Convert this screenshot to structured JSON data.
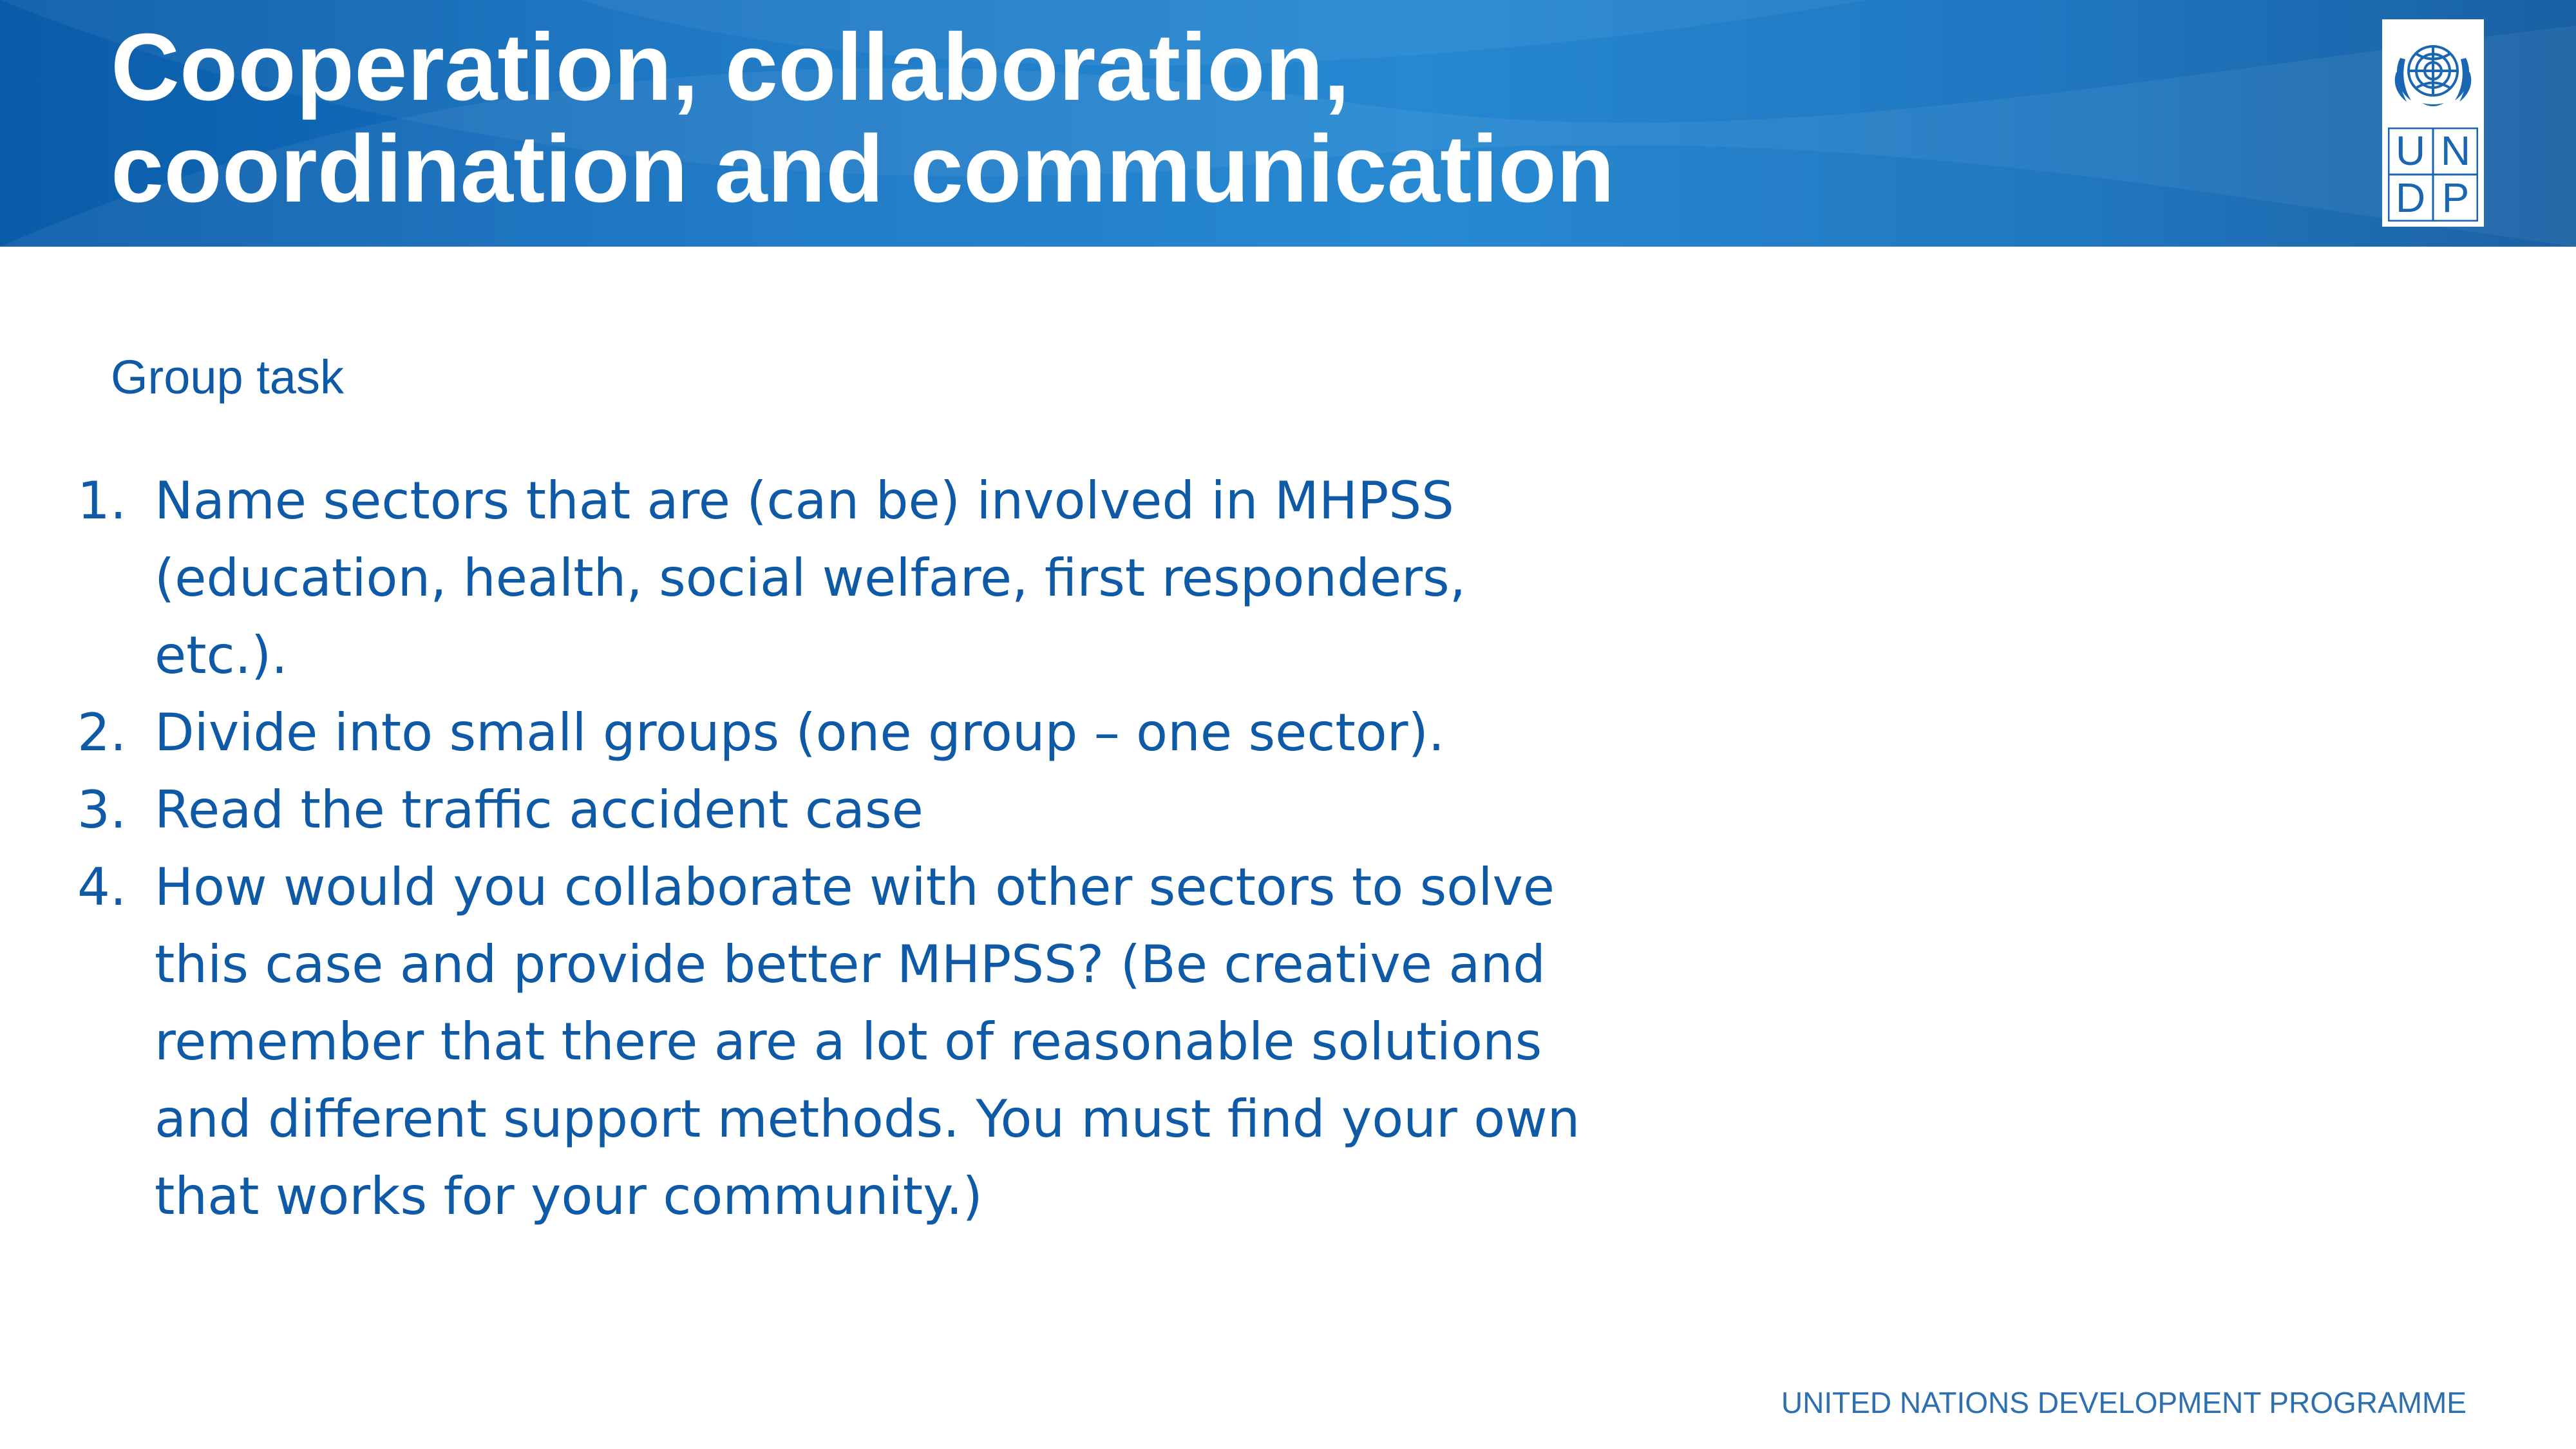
{
  "header": {
    "title_line1": "Cooperation, collaboration,",
    "title_line2": "coordination and communication",
    "logo_letters": [
      "U",
      "N",
      "D",
      "P"
    ],
    "banner_color": "#1574c4"
  },
  "content": {
    "subtitle": "Group task",
    "items": [
      {
        "number": "1.",
        "text": "Name sectors that are (can be) involved in MHPSS (education, health, social welfare, first responders, etc.)."
      },
      {
        "number": "2.",
        "text": "Divide into small groups (one group – one sector)."
      },
      {
        "number": "3.",
        "text": "Read the traffic accident case"
      },
      {
        "number": "4.",
        "text": "How would you collaborate with other sectors to solve this case and provide better MHPSS? (Be creative and remember that there are a lot of reasonable solutions and different support methods. You must find your own that works for your community.)"
      }
    ],
    "text_color": "#0e5aa7"
  },
  "footer": {
    "org_name": "UNITED NATIONS DEVELOPMENT PROGRAMME"
  }
}
